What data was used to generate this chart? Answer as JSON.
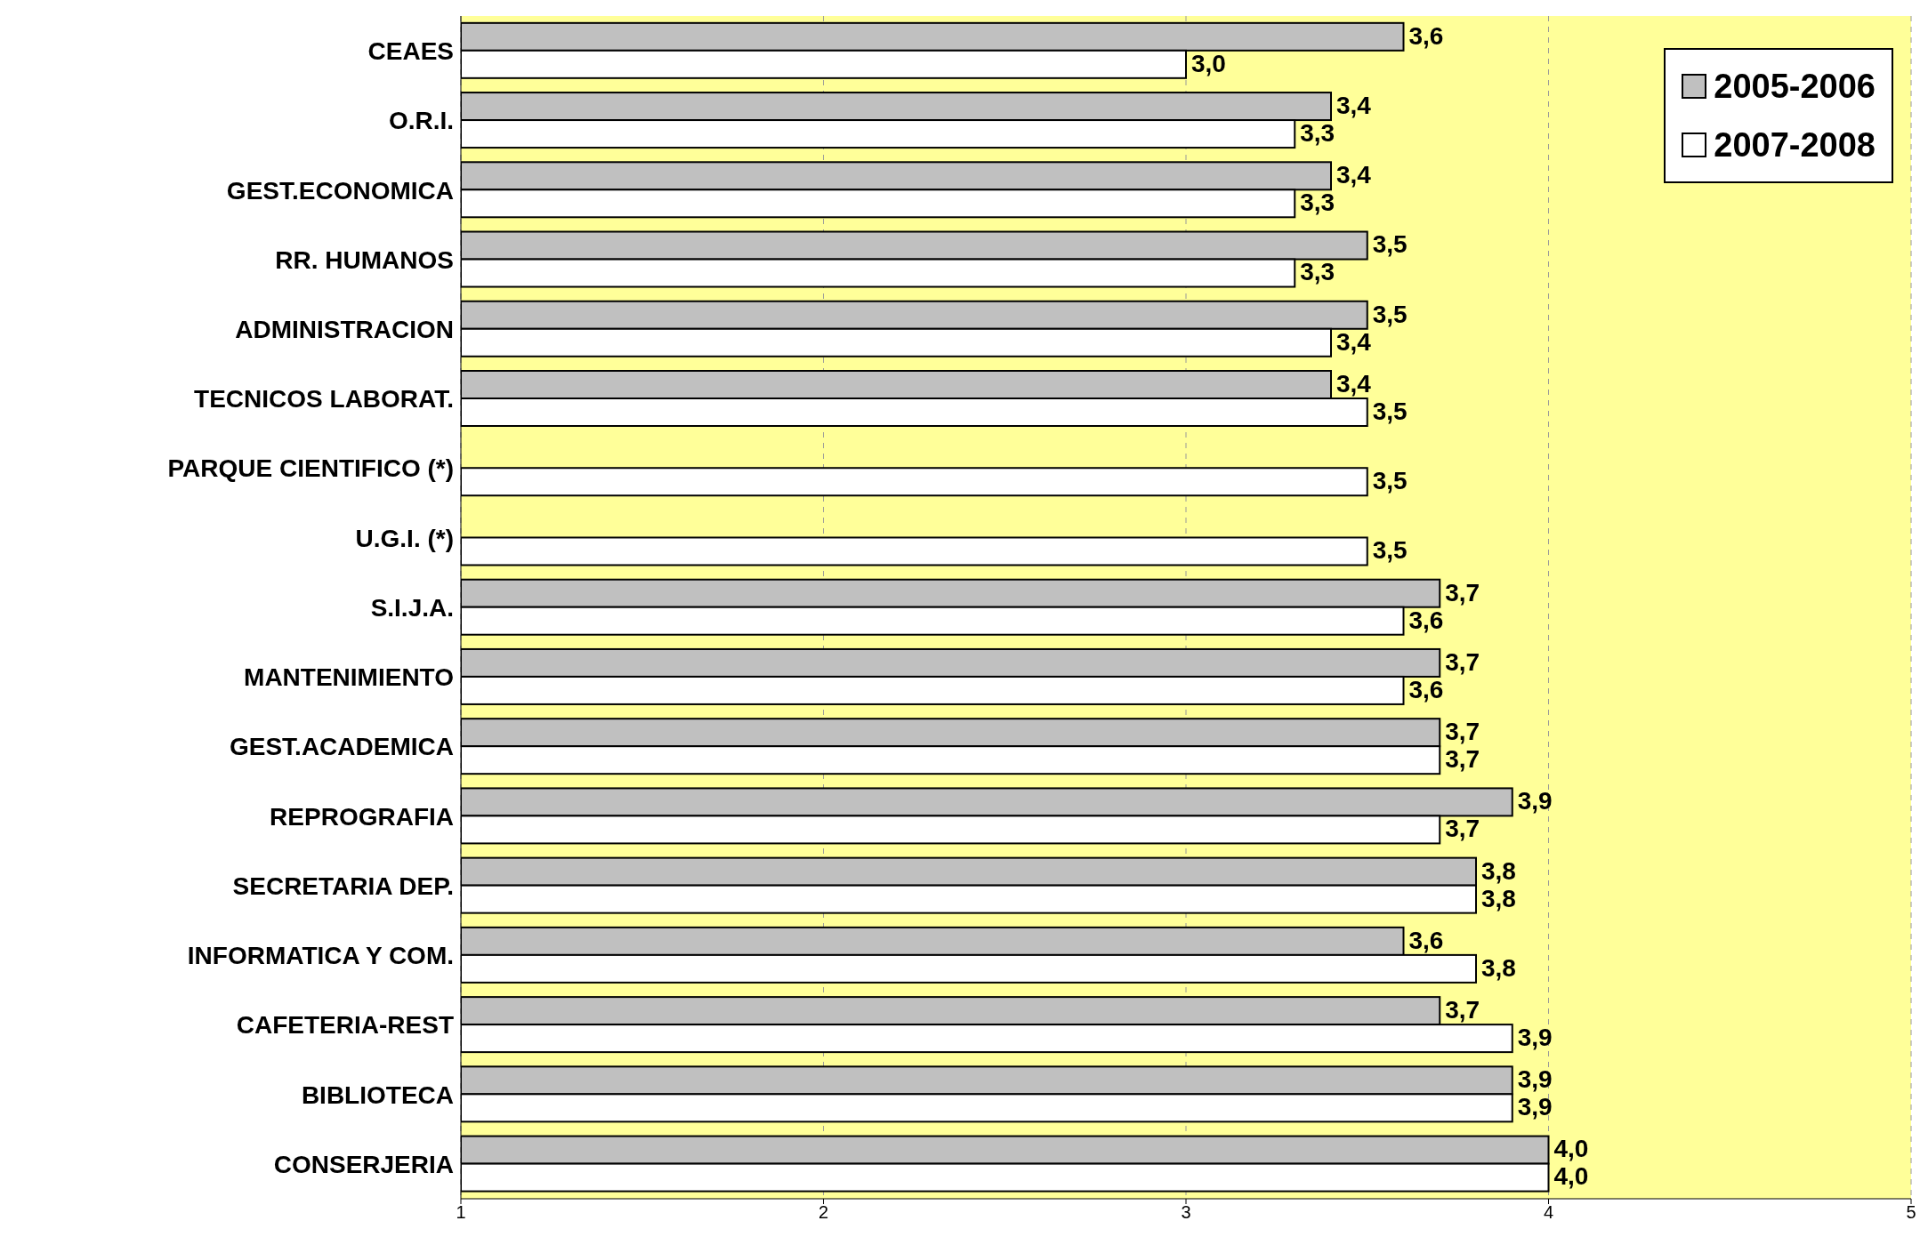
{
  "chart_data": {
    "type": "bar",
    "orientation": "horizontal",
    "categories": [
      "CEAES",
      "O.R.I.",
      "GEST.ECONOMICA",
      "RR. HUMANOS",
      "ADMINISTRACION",
      "TECNICOS LABORAT.",
      "PARQUE CIENTIFICO (*)",
      "U.G.I. (*)",
      "S.I.J.A.",
      "MANTENIMIENTO",
      "GEST.ACADEMICA",
      "REPROGRAFIA",
      "SECRETARIA DEP.",
      "INFORMATICA Y COM.",
      "CAFETERIA-REST",
      "BIBLIOTECA",
      "CONSERJERIA"
    ],
    "series": [
      {
        "name": "2005-2006",
        "color": "#c0c0c0",
        "values": [
          3.6,
          3.4,
          3.4,
          3.5,
          3.5,
          3.4,
          null,
          null,
          3.7,
          3.7,
          3.7,
          3.9,
          3.8,
          3.6,
          3.7,
          3.9,
          4.0
        ],
        "value_labels": [
          "3,6",
          "3,4",
          "3,4",
          "3,5",
          "3,5",
          "3,4",
          null,
          null,
          "3,7",
          "3,7",
          "3,7",
          "3,9",
          "3,8",
          "3,6",
          "3,7",
          "3,9",
          "4,0"
        ]
      },
      {
        "name": "2007-2008",
        "color": "#ffffff",
        "values": [
          3.0,
          3.3,
          3.3,
          3.3,
          3.4,
          3.5,
          3.5,
          3.5,
          3.6,
          3.6,
          3.7,
          3.7,
          3.8,
          3.8,
          3.9,
          3.9,
          4.0
        ],
        "value_labels": [
          "3,0",
          "3,3",
          "3,3",
          "3,3",
          "3,4",
          "3,5",
          "3,5",
          "3,5",
          "3,6",
          "3,6",
          "3,7",
          "3,7",
          "3,8",
          "3,8",
          "3,9",
          "3,9",
          "4,0"
        ]
      }
    ],
    "xlim": [
      1,
      5
    ],
    "xticks": [
      1,
      2,
      3,
      4,
      5
    ],
    "grid": "x",
    "legend": "top right"
  }
}
